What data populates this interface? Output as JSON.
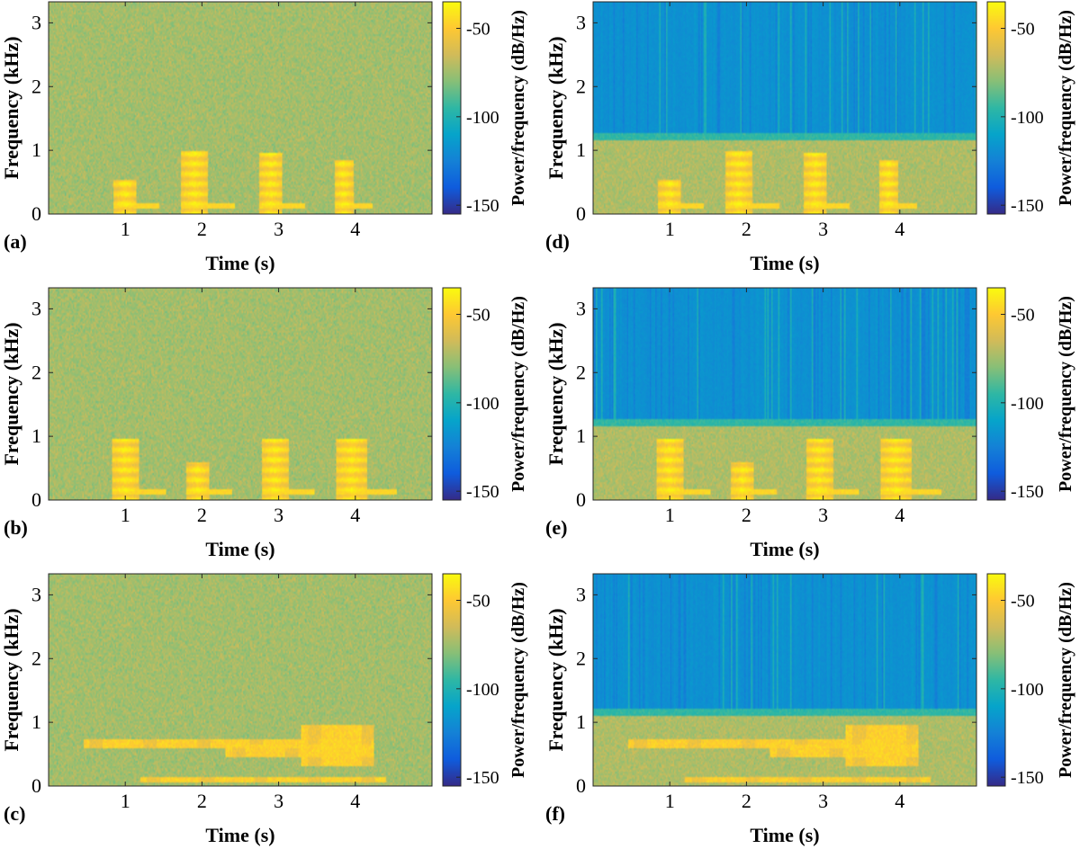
{
  "chart_data": [
    {
      "panel": "(a)",
      "type": "heatmap",
      "variant": "noisy",
      "xlabel": "Time (s)",
      "ylabel": "Frequency (kHz)",
      "colorbar_label": "Power/frequency (dB/Hz)",
      "xlim": [
        0,
        5
      ],
      "ylim": [
        0,
        3.33
      ],
      "clim": [
        -155,
        -35
      ],
      "xticks": [
        1,
        2,
        3,
        4
      ],
      "yticks": [
        0,
        1,
        2,
        3
      ],
      "cbticks": [
        -50,
        -100,
        -150
      ],
      "calls": [
        {
          "t": 1.0,
          "w": 0.3,
          "fmax": 0.55
        },
        {
          "t": 1.9,
          "w": 0.35,
          "fmax": 0.98
        },
        {
          "t": 2.9,
          "w": 0.3,
          "fmax": 0.95
        },
        {
          "t": 3.85,
          "w": 0.25,
          "fmax": 0.85
        }
      ]
    },
    {
      "panel": "(b)",
      "type": "heatmap",
      "variant": "noisy",
      "xlabel": "Time (s)",
      "ylabel": "Frequency (kHz)",
      "colorbar_label": "Power/frequency (dB/Hz)",
      "xlim": [
        0,
        5
      ],
      "ylim": [
        0,
        3.33
      ],
      "clim": [
        -155,
        -35
      ],
      "xticks": [
        1,
        2,
        3,
        4
      ],
      "yticks": [
        0,
        1,
        2,
        3
      ],
      "cbticks": [
        -50,
        -100,
        -150
      ],
      "calls": [
        {
          "t": 1.0,
          "w": 0.35,
          "fmax": 0.95
        },
        {
          "t": 1.95,
          "w": 0.3,
          "fmax": 0.6
        },
        {
          "t": 2.95,
          "w": 0.35,
          "fmax": 0.95
        },
        {
          "t": 3.95,
          "w": 0.4,
          "fmax": 0.95
        }
      ]
    },
    {
      "panel": "(c)",
      "type": "heatmap",
      "variant": "noisy",
      "xlabel": "Time (s)",
      "ylabel": "Frequency (kHz)",
      "colorbar_label": "Power/frequency (dB/Hz)",
      "xlim": [
        0,
        5
      ],
      "ylim": [
        0,
        3.33
      ],
      "clim": [
        -155,
        -35
      ],
      "xticks": [
        1,
        2,
        3,
        4
      ],
      "yticks": [
        0,
        1,
        2,
        3
      ],
      "cbticks": [
        -50,
        -100,
        -150
      ],
      "bands": [
        {
          "t0": 0.45,
          "t1": 4.25,
          "f0": 0.6,
          "f1": 0.72
        },
        {
          "t0": 2.3,
          "t1": 4.25,
          "f0": 0.45,
          "f1": 0.65
        },
        {
          "t0": 3.3,
          "t1": 4.25,
          "f0": 0.3,
          "f1": 0.95
        },
        {
          "t0": 1.2,
          "t1": 4.4,
          "f0": 0.06,
          "f1": 0.14
        }
      ]
    },
    {
      "panel": "(d)",
      "type": "heatmap",
      "variant": "filtered",
      "xlabel": "Time (s)",
      "ylabel": "Frequency (kHz)",
      "colorbar_label": "Power/frequency (dB/Hz)",
      "xlim": [
        0,
        5
      ],
      "ylim": [
        0,
        3.33
      ],
      "clim": [
        -155,
        -35
      ],
      "xticks": [
        1,
        2,
        3,
        4
      ],
      "yticks": [
        0,
        1,
        2,
        3
      ],
      "cbticks": [
        -50,
        -100,
        -150
      ],
      "cutoff_khz": 1.15,
      "calls": [
        {
          "t": 1.0,
          "w": 0.3,
          "fmax": 0.55
        },
        {
          "t": 1.9,
          "w": 0.35,
          "fmax": 0.98
        },
        {
          "t": 2.9,
          "w": 0.3,
          "fmax": 0.95
        },
        {
          "t": 3.85,
          "w": 0.25,
          "fmax": 0.85
        }
      ]
    },
    {
      "panel": "(e)",
      "type": "heatmap",
      "variant": "filtered",
      "xlabel": "Time (s)",
      "ylabel": "Frequency (kHz)",
      "colorbar_label": "Power/frequency (dB/Hz)",
      "xlim": [
        0,
        5
      ],
      "ylim": [
        0,
        3.33
      ],
      "clim": [
        -155,
        -35
      ],
      "xticks": [
        1,
        2,
        3,
        4
      ],
      "yticks": [
        0,
        1,
        2,
        3
      ],
      "cbticks": [
        -50,
        -100,
        -150
      ],
      "cutoff_khz": 1.15,
      "calls": [
        {
          "t": 1.0,
          "w": 0.35,
          "fmax": 0.95
        },
        {
          "t": 1.95,
          "w": 0.3,
          "fmax": 0.6
        },
        {
          "t": 2.95,
          "w": 0.35,
          "fmax": 0.95
        },
        {
          "t": 3.95,
          "w": 0.4,
          "fmax": 0.95
        }
      ]
    },
    {
      "panel": "(f)",
      "type": "heatmap",
      "variant": "filtered",
      "xlabel": "Time (s)",
      "ylabel": "Frequency (kHz)",
      "colorbar_label": "Power/frequency (dB/Hz)",
      "xlim": [
        0,
        5
      ],
      "ylim": [
        0,
        3.33
      ],
      "clim": [
        -155,
        -35
      ],
      "xticks": [
        1,
        2,
        3,
        4
      ],
      "yticks": [
        0,
        1,
        2,
        3
      ],
      "cbticks": [
        -50,
        -100,
        -150
      ],
      "cutoff_khz": 1.1,
      "bands": [
        {
          "t0": 0.45,
          "t1": 4.25,
          "f0": 0.6,
          "f1": 0.72
        },
        {
          "t0": 2.3,
          "t1": 4.25,
          "f0": 0.45,
          "f1": 0.65
        },
        {
          "t0": 3.3,
          "t1": 4.25,
          "f0": 0.3,
          "f1": 0.95
        },
        {
          "t0": 1.2,
          "t1": 4.4,
          "f0": 0.06,
          "f1": 0.14
        }
      ]
    }
  ],
  "colors": {
    "parula": [
      "#352a87",
      "#0f5cdd",
      "#1481d6",
      "#06a4ca",
      "#2eb7a4",
      "#87bf77",
      "#d1bb59",
      "#fec832",
      "#f9fb0e"
    ]
  }
}
